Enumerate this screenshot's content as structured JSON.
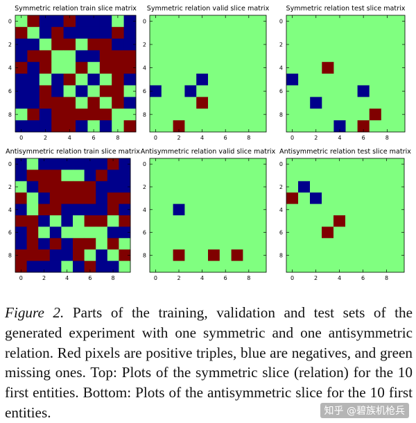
{
  "colors": {
    "positive": "#800000",
    "negative": "#00008b",
    "missing": "#80ff80"
  },
  "chart_data": [
    {
      "type": "heatmap",
      "title": "Symmetric relation train slice matrix",
      "x_ticks": [
        "0",
        "2",
        "4",
        "6",
        "8"
      ],
      "y_ticks": [
        "0",
        "2",
        "4",
        "6",
        "8"
      ],
      "legend": {
        "1": "positive (red)",
        "-1": "negative (blue)",
        "0": "missing (green)"
      },
      "matrix": [
        [
          0,
          1,
          -1,
          -1,
          1,
          -1,
          -1,
          -1,
          0,
          -1
        ],
        [
          1,
          0,
          -1,
          1,
          -1,
          -1,
          -1,
          -1,
          1,
          -1
        ],
        [
          -1,
          -1,
          0,
          1,
          1,
          0,
          1,
          1,
          -1,
          -1
        ],
        [
          -1,
          1,
          1,
          0,
          0,
          -1,
          -1,
          1,
          1,
          1
        ],
        [
          1,
          -1,
          1,
          0,
          0,
          1,
          0,
          1,
          1,
          1
        ],
        [
          -1,
          -1,
          0,
          -1,
          1,
          0,
          -1,
          0,
          1,
          -1
        ],
        [
          -1,
          -1,
          1,
          -1,
          0,
          -1,
          0,
          1,
          1,
          0
        ],
        [
          -1,
          -1,
          1,
          1,
          1,
          0,
          1,
          0,
          1,
          -1
        ],
        [
          0,
          1,
          -1,
          1,
          1,
          1,
          1,
          1,
          0,
          0
        ],
        [
          -1,
          -1,
          -1,
          1,
          1,
          -1,
          0,
          -1,
          0,
          1
        ]
      ]
    },
    {
      "type": "heatmap",
      "title": "Symmetric relation valid slice matrix",
      "x_ticks": [
        "0",
        "2",
        "4",
        "6",
        "8"
      ],
      "y_ticks": [
        "0",
        "2",
        "4",
        "6",
        "8"
      ],
      "matrix": [
        [
          0,
          0,
          0,
          0,
          0,
          0,
          0,
          0,
          0,
          0
        ],
        [
          0,
          0,
          0,
          0,
          0,
          0,
          0,
          0,
          0,
          0
        ],
        [
          0,
          0,
          0,
          0,
          0,
          0,
          0,
          0,
          0,
          0
        ],
        [
          0,
          0,
          0,
          0,
          0,
          0,
          0,
          0,
          0,
          0
        ],
        [
          0,
          0,
          0,
          0,
          0,
          0,
          0,
          0,
          0,
          0
        ],
        [
          0,
          0,
          0,
          0,
          -1,
          0,
          0,
          0,
          0,
          0
        ],
        [
          -1,
          0,
          0,
          -1,
          0,
          0,
          0,
          0,
          0,
          0
        ],
        [
          0,
          0,
          0,
          0,
          1,
          0,
          0,
          0,
          0,
          0
        ],
        [
          0,
          0,
          0,
          0,
          0,
          0,
          0,
          0,
          0,
          0
        ],
        [
          0,
          0,
          1,
          0,
          0,
          0,
          0,
          0,
          0,
          0
        ]
      ]
    },
    {
      "type": "heatmap",
      "title": "Symmetric relation test slice matrix",
      "x_ticks": [
        "0",
        "2",
        "4",
        "6",
        "8"
      ],
      "y_ticks": [
        "0",
        "2",
        "4",
        "6",
        "8"
      ],
      "matrix": [
        [
          0,
          0,
          0,
          0,
          0,
          0,
          0,
          0,
          0,
          0
        ],
        [
          0,
          0,
          0,
          0,
          0,
          0,
          0,
          0,
          0,
          0
        ],
        [
          0,
          0,
          0,
          0,
          0,
          0,
          0,
          0,
          0,
          0
        ],
        [
          0,
          0,
          0,
          0,
          0,
          0,
          0,
          0,
          0,
          0
        ],
        [
          0,
          0,
          0,
          1,
          0,
          0,
          0,
          0,
          0,
          0
        ],
        [
          -1,
          0,
          0,
          0,
          0,
          0,
          0,
          0,
          0,
          0
        ],
        [
          0,
          0,
          0,
          0,
          0,
          0,
          -1,
          0,
          0,
          0
        ],
        [
          0,
          0,
          -1,
          0,
          0,
          0,
          0,
          0,
          0,
          0
        ],
        [
          0,
          0,
          0,
          0,
          0,
          0,
          0,
          1,
          0,
          0
        ],
        [
          0,
          0,
          0,
          0,
          -1,
          0,
          1,
          0,
          0,
          0
        ]
      ]
    },
    {
      "type": "heatmap",
      "title": "Antisymmetric relation train slice matrix",
      "x_ticks": [
        "0",
        "2",
        "4",
        "6",
        "8"
      ],
      "y_ticks": [
        "0",
        "2",
        "4",
        "6",
        "8"
      ],
      "matrix": [
        [
          -1,
          0,
          -1,
          -1,
          -1,
          -1,
          -1,
          -1,
          1,
          -1
        ],
        [
          -1,
          1,
          1,
          1,
          0,
          0,
          -1,
          1,
          -1,
          -1
        ],
        [
          0,
          -1,
          1,
          1,
          1,
          1,
          1,
          -1,
          -1,
          -1
        ],
        [
          1,
          0,
          -1,
          1,
          1,
          1,
          1,
          -1,
          1,
          1
        ],
        [
          -1,
          0,
          1,
          1,
          -1,
          -1,
          -1,
          -1,
          1,
          -1
        ],
        [
          1,
          1,
          -1,
          0,
          -1,
          0,
          1,
          1,
          0,
          1
        ],
        [
          -1,
          1,
          0,
          -1,
          0,
          0,
          0,
          0,
          -1,
          -1
        ],
        [
          -1,
          1,
          -1,
          1,
          -1,
          1,
          1,
          0,
          1,
          0
        ],
        [
          1,
          1,
          1,
          -1,
          -1,
          1,
          0,
          -1,
          0,
          1
        ],
        [
          1,
          -1,
          -1,
          -1,
          0,
          -1,
          1,
          -1,
          -1,
          0
        ]
      ]
    },
    {
      "type": "heatmap",
      "title": "Antisymmetric relation valid slice matrix",
      "x_ticks": [
        "0",
        "2",
        "4",
        "6",
        "8"
      ],
      "y_ticks": [
        "0",
        "2",
        "4",
        "6",
        "8"
      ],
      "matrix": [
        [
          0,
          0,
          0,
          0,
          0,
          0,
          0,
          0,
          0,
          0
        ],
        [
          0,
          0,
          0,
          0,
          0,
          0,
          0,
          0,
          0,
          0
        ],
        [
          0,
          0,
          0,
          0,
          0,
          0,
          0,
          0,
          0,
          0
        ],
        [
          0,
          0,
          0,
          0,
          0,
          0,
          0,
          0,
          0,
          0
        ],
        [
          0,
          0,
          -1,
          0,
          0,
          0,
          0,
          0,
          0,
          0
        ],
        [
          0,
          0,
          0,
          0,
          0,
          0,
          0,
          0,
          0,
          0
        ],
        [
          0,
          0,
          0,
          0,
          0,
          0,
          0,
          0,
          0,
          0
        ],
        [
          0,
          0,
          0,
          0,
          0,
          0,
          0,
          0,
          0,
          0
        ],
        [
          0,
          0,
          1,
          0,
          0,
          1,
          0,
          1,
          0,
          0
        ],
        [
          0,
          0,
          0,
          0,
          0,
          0,
          0,
          0,
          0,
          0
        ]
      ]
    },
    {
      "type": "heatmap",
      "title": "Antisymmetric relation test slice matrix",
      "x_ticks": [
        "0",
        "2",
        "4",
        "6",
        "8"
      ],
      "y_ticks": [
        "0",
        "2",
        "4",
        "6",
        "8"
      ],
      "matrix": [
        [
          0,
          0,
          0,
          0,
          0,
          0,
          0,
          0,
          0,
          0
        ],
        [
          0,
          0,
          0,
          0,
          0,
          0,
          0,
          0,
          0,
          0
        ],
        [
          0,
          -1,
          0,
          0,
          0,
          0,
          0,
          0,
          0,
          0
        ],
        [
          1,
          0,
          -1,
          0,
          0,
          0,
          0,
          0,
          0,
          0
        ],
        [
          0,
          0,
          0,
          0,
          0,
          0,
          0,
          0,
          0,
          0
        ],
        [
          0,
          0,
          0,
          0,
          1,
          0,
          0,
          0,
          0,
          0
        ],
        [
          0,
          0,
          0,
          1,
          0,
          0,
          0,
          0,
          0,
          0
        ],
        [
          0,
          0,
          0,
          0,
          0,
          0,
          0,
          0,
          0,
          0
        ],
        [
          0,
          0,
          0,
          0,
          0,
          0,
          0,
          0,
          0,
          0
        ],
        [
          0,
          0,
          0,
          0,
          0,
          0,
          0,
          0,
          0,
          0
        ]
      ]
    }
  ],
  "caption": {
    "label": "Figure 2.",
    "text": "Parts of the training, validation and test sets of the generated experiment with one symmetric and one antisymmetric relation. Red pixels are positive triples, blue are negatives, and green missing ones. Top: Plots of the symmetric slice (relation) for the 10 first entities. Bottom: Plots of the antisymmetric slice for the 10 first entities."
  },
  "watermark": "知乎 @碧族机枪兵"
}
